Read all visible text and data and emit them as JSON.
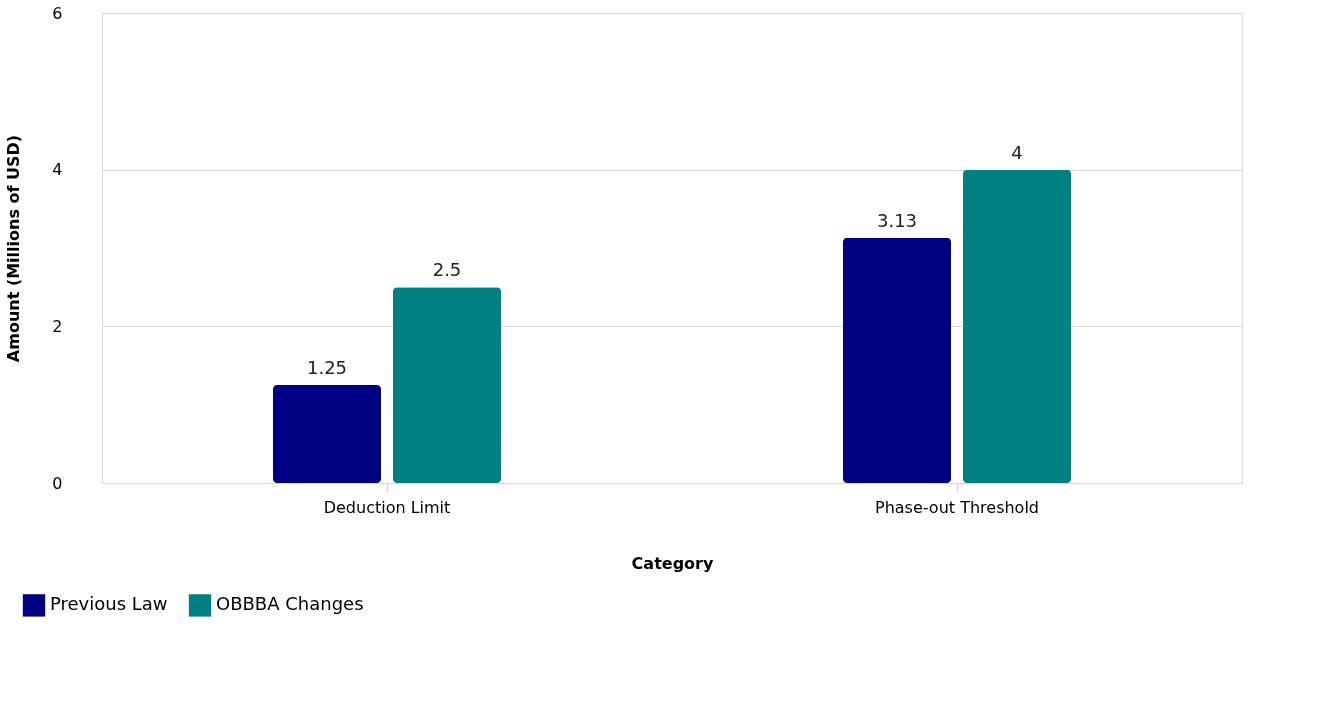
{
  "chart_data": {
    "type": "bar",
    "xlabel": "Category",
    "ylabel": "Amount (Millions of USD)",
    "categories": [
      "Deduction Limit",
      "Phase-out Threshold"
    ],
    "series": [
      {
        "name": "Previous Law",
        "color": "#000080",
        "values": [
          1.25,
          3.13
        ]
      },
      {
        "name": "OBBBA Changes",
        "color": "#008080",
        "values": [
          2.5,
          4
        ]
      }
    ],
    "ylim": [
      0,
      6
    ],
    "yticks": [
      0,
      2,
      4,
      6
    ],
    "grid": "y",
    "legend": "bottom left",
    "data_labels": true
  }
}
